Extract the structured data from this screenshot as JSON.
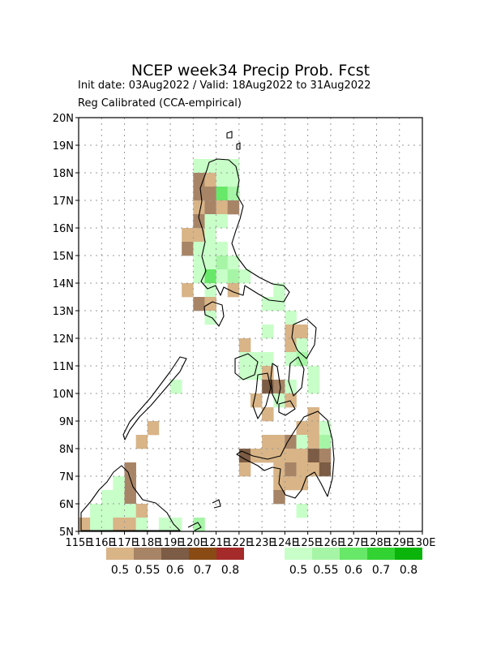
{
  "title": "NCEP week34 Precip Prob. Fcst",
  "subtitle_line1": "Init date: 03Aug2022 / Valid: 18Aug2022 to 31Aug2022",
  "subtitle_line2": "Reg Calibrated (CCA-empirical)",
  "map": {
    "lon_range": [
      115,
      130
    ],
    "lat_range": [
      5,
      20
    ],
    "grid_lines": true,
    "lat_tick_labels": [
      "5N",
      "6N",
      "7N",
      "8N",
      "9N",
      "10N",
      "11N",
      "12N",
      "13N",
      "14N",
      "15N",
      "16N",
      "17N",
      "18N",
      "19N",
      "20N"
    ],
    "lon_tick_labels": [
      "115E",
      "116E",
      "117E",
      "118E",
      "119E",
      "120E",
      "121E",
      "122E",
      "123E",
      "124E",
      "125E",
      "126E",
      "127E",
      "128E",
      "129E",
      "130E"
    ]
  },
  "colors": {
    "dry": [
      "#d8b487",
      "#a88466",
      "#7c5c44",
      "#8a4a14",
      "#a52a2a"
    ],
    "wet": [
      "#c8ffc8",
      "#a6f5a6",
      "#68e868",
      "#32d232",
      "#0ab40a"
    ]
  },
  "legend": {
    "dry_labels": [
      "0.5",
      "0.55",
      "0.6",
      "0.7",
      "0.8"
    ],
    "wet_labels": [
      "0.5",
      "0.55",
      "0.6",
      "0.7",
      "0.8"
    ]
  },
  "cells": [
    {
      "lon": 120.0,
      "lat": 18.0,
      "c": "w0"
    },
    {
      "lon": 120.5,
      "lat": 18.0,
      "c": "w0"
    },
    {
      "lon": 121.0,
      "lat": 18.0,
      "c": "w0"
    },
    {
      "lon": 121.5,
      "lat": 18.0,
      "c": "w0"
    },
    {
      "lon": 120.0,
      "lat": 17.5,
      "c": "d1"
    },
    {
      "lon": 120.5,
      "lat": 17.5,
      "c": "d0"
    },
    {
      "lon": 121.0,
      "lat": 17.5,
      "c": "w0"
    },
    {
      "lon": 121.5,
      "lat": 17.5,
      "c": "w0"
    },
    {
      "lon": 120.0,
      "lat": 17.0,
      "c": "d1"
    },
    {
      "lon": 120.5,
      "lat": 17.0,
      "c": "d1"
    },
    {
      "lon": 121.0,
      "lat": 17.0,
      "c": "w2"
    },
    {
      "lon": 121.5,
      "lat": 17.0,
      "c": "w1"
    },
    {
      "lon": 120.0,
      "lat": 16.5,
      "c": "d0"
    },
    {
      "lon": 120.5,
      "lat": 16.5,
      "c": "d1"
    },
    {
      "lon": 121.0,
      "lat": 16.5,
      "c": "d0"
    },
    {
      "lon": 121.5,
      "lat": 16.5,
      "c": "d1"
    },
    {
      "lon": 120.0,
      "lat": 16.0,
      "c": "d1"
    },
    {
      "lon": 120.5,
      "lat": 16.0,
      "c": "w0"
    },
    {
      "lon": 121.0,
      "lat": 16.0,
      "c": "w0"
    },
    {
      "lon": 119.5,
      "lat": 15.5,
      "c": "d0"
    },
    {
      "lon": 120.0,
      "lat": 15.5,
      "c": "d0"
    },
    {
      "lon": 120.5,
      "lat": 15.5,
      "c": "w0"
    },
    {
      "lon": 119.5,
      "lat": 15.0,
      "c": "d1"
    },
    {
      "lon": 120.0,
      "lat": 15.0,
      "c": "w0"
    },
    {
      "lon": 120.5,
      "lat": 15.0,
      "c": "w0"
    },
    {
      "lon": 121.0,
      "lat": 15.0,
      "c": "w0"
    },
    {
      "lon": 120.0,
      "lat": 14.5,
      "c": "w0"
    },
    {
      "lon": 120.5,
      "lat": 14.5,
      "c": "w0"
    },
    {
      "lon": 121.0,
      "lat": 14.5,
      "c": "w1"
    },
    {
      "lon": 121.5,
      "lat": 14.5,
      "c": "w0"
    },
    {
      "lon": 120.0,
      "lat": 14.0,
      "c": "w0"
    },
    {
      "lon": 120.5,
      "lat": 14.0,
      "c": "w2"
    },
    {
      "lon": 121.0,
      "lat": 14.0,
      "c": "w0"
    },
    {
      "lon": 121.5,
      "lat": 14.0,
      "c": "w1"
    },
    {
      "lon": 122.0,
      "lat": 14.0,
      "c": "w0"
    },
    {
      "lon": 119.5,
      "lat": 13.5,
      "c": "d0"
    },
    {
      "lon": 120.5,
      "lat": 13.5,
      "c": "w0"
    },
    {
      "lon": 121.5,
      "lat": 13.5,
      "c": "d0"
    },
    {
      "lon": 123.5,
      "lat": 13.5,
      "c": "w0"
    },
    {
      "lon": 120.0,
      "lat": 13.0,
      "c": "d1"
    },
    {
      "lon": 120.5,
      "lat": 13.0,
      "c": "d0"
    },
    {
      "lon": 123.0,
      "lat": 13.0,
      "c": "w0"
    },
    {
      "lon": 123.5,
      "lat": 13.0,
      "c": "w0"
    },
    {
      "lon": 120.5,
      "lat": 12.5,
      "c": "w0"
    },
    {
      "lon": 124.0,
      "lat": 12.5,
      "c": "w0"
    },
    {
      "lon": 123.0,
      "lat": 12.0,
      "c": "w0"
    },
    {
      "lon": 124.0,
      "lat": 12.0,
      "c": "d0"
    },
    {
      "lon": 124.5,
      "lat": 12.0,
      "c": "d0"
    },
    {
      "lon": 122.0,
      "lat": 11.5,
      "c": "d0"
    },
    {
      "lon": 124.0,
      "lat": 11.5,
      "c": "d0"
    },
    {
      "lon": 124.5,
      "lat": 11.5,
      "c": "w0"
    },
    {
      "lon": 122.0,
      "lat": 11.0,
      "c": "w0"
    },
    {
      "lon": 122.5,
      "lat": 11.0,
      "c": "w0"
    },
    {
      "lon": 123.0,
      "lat": 11.0,
      "c": "w0"
    },
    {
      "lon": 124.0,
      "lat": 11.0,
      "c": "w0"
    },
    {
      "lon": 124.5,
      "lat": 11.0,
      "c": "w1"
    },
    {
      "lon": 122.0,
      "lat": 10.5,
      "c": "w0"
    },
    {
      "lon": 122.5,
      "lat": 10.5,
      "c": "w0"
    },
    {
      "lon": 123.0,
      "lat": 10.5,
      "c": "d0"
    },
    {
      "lon": 125.0,
      "lat": 10.5,
      "c": "w0"
    },
    {
      "lon": 123.0,
      "lat": 10.0,
      "c": "d2"
    },
    {
      "lon": 123.5,
      "lat": 10.0,
      "c": "d1"
    },
    {
      "lon": 124.0,
      "lat": 10.0,
      "c": "w0"
    },
    {
      "lon": 125.0,
      "lat": 10.0,
      "c": "w0"
    },
    {
      "lon": 122.5,
      "lat": 9.5,
      "c": "d0"
    },
    {
      "lon": 123.5,
      "lat": 9.5,
      "c": "w0"
    },
    {
      "lon": 124.0,
      "lat": 9.5,
      "c": "d0"
    },
    {
      "lon": 123.0,
      "lat": 9.0,
      "c": "d0"
    },
    {
      "lon": 125.0,
      "lat": 9.0,
      "c": "d0"
    },
    {
      "lon": 124.5,
      "lat": 8.5,
      "c": "d0"
    },
    {
      "lon": 125.0,
      "lat": 8.5,
      "c": "d0"
    },
    {
      "lon": 125.5,
      "lat": 8.5,
      "c": "w0"
    },
    {
      "lon": 123.0,
      "lat": 8.0,
      "c": "d0"
    },
    {
      "lon": 123.5,
      "lat": 8.0,
      "c": "d0"
    },
    {
      "lon": 124.0,
      "lat": 8.0,
      "c": "d1"
    },
    {
      "lon": 124.5,
      "lat": 8.0,
      "c": "w0"
    },
    {
      "lon": 125.0,
      "lat": 8.0,
      "c": "d0"
    },
    {
      "lon": 125.5,
      "lat": 8.0,
      "c": "w1"
    },
    {
      "lon": 122.0,
      "lat": 7.5,
      "c": "d2"
    },
    {
      "lon": 122.5,
      "lat": 7.5,
      "c": "d0"
    },
    {
      "lon": 123.0,
      "lat": 7.5,
      "c": "d0"
    },
    {
      "lon": 123.5,
      "lat": 7.5,
      "c": "d0"
    },
    {
      "lon": 124.0,
      "lat": 7.5,
      "c": "d0"
    },
    {
      "lon": 124.5,
      "lat": 7.5,
      "c": "d0"
    },
    {
      "lon": 125.0,
      "lat": 7.5,
      "c": "d2"
    },
    {
      "lon": 125.5,
      "lat": 7.5,
      "c": "d1"
    },
    {
      "lon": 122.0,
      "lat": 7.0,
      "c": "d0"
    },
    {
      "lon": 123.5,
      "lat": 7.0,
      "c": "d0"
    },
    {
      "lon": 124.0,
      "lat": 7.0,
      "c": "d1"
    },
    {
      "lon": 124.5,
      "lat": 7.0,
      "c": "d0"
    },
    {
      "lon": 125.0,
      "lat": 7.0,
      "c": "d0"
    },
    {
      "lon": 125.5,
      "lat": 7.0,
      "c": "d2"
    },
    {
      "lon": 123.5,
      "lat": 6.5,
      "c": "d0"
    },
    {
      "lon": 124.0,
      "lat": 6.5,
      "c": "d0"
    },
    {
      "lon": 124.5,
      "lat": 6.5,
      "c": "d0"
    },
    {
      "lon": 123.5,
      "lat": 6.0,
      "c": "d1"
    },
    {
      "lon": 124.5,
      "lat": 5.5,
      "c": "w0"
    },
    {
      "lon": 117.0,
      "lat": 7.0,
      "c": "d1"
    },
    {
      "lon": 117.0,
      "lat": 6.5,
      "c": "d1"
    },
    {
      "lon": 116.5,
      "lat": 6.5,
      "c": "w0"
    },
    {
      "lon": 116.0,
      "lat": 6.0,
      "c": "w0"
    },
    {
      "lon": 116.5,
      "lat": 6.0,
      "c": "w0"
    },
    {
      "lon": 117.0,
      "lat": 6.0,
      "c": "d1"
    },
    {
      "lon": 115.5,
      "lat": 5.5,
      "c": "w0"
    },
    {
      "lon": 116.0,
      "lat": 5.5,
      "c": "w0"
    },
    {
      "lon": 116.5,
      "lat": 5.5,
      "c": "w0"
    },
    {
      "lon": 117.0,
      "lat": 5.5,
      "c": "w0"
    },
    {
      "lon": 117.5,
      "lat": 5.5,
      "c": "d0"
    },
    {
      "lon": 115.0,
      "lat": 5.0,
      "c": "d0"
    },
    {
      "lon": 115.5,
      "lat": 5.0,
      "c": "w0"
    },
    {
      "lon": 116.0,
      "lat": 5.0,
      "c": "w0"
    },
    {
      "lon": 116.5,
      "lat": 5.0,
      "c": "d0"
    },
    {
      "lon": 117.0,
      "lat": 5.0,
      "c": "d0"
    },
    {
      "lon": 117.5,
      "lat": 5.0,
      "c": "w0"
    },
    {
      "lon": 118.5,
      "lat": 5.0,
      "c": "w0"
    },
    {
      "lon": 119.0,
      "lat": 5.0,
      "c": "w0"
    },
    {
      "lon": 120.0,
      "lat": 5.0,
      "c": "w1"
    },
    {
      "lon": 118.0,
      "lat": 8.5,
      "c": "d0"
    },
    {
      "lon": 117.5,
      "lat": 8.0,
      "c": "d0"
    },
    {
      "lon": 119.0,
      "lat": 10.0,
      "c": "w0"
    }
  ]
}
